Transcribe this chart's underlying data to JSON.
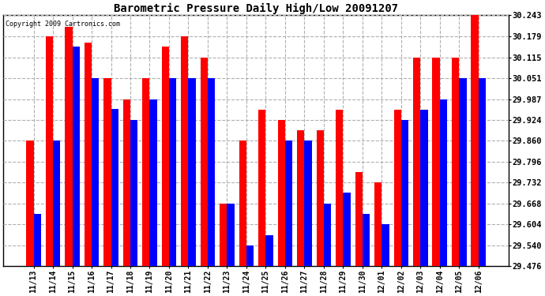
{
  "title": "Barometric Pressure Daily High/Low 20091207",
  "copyright": "Copyright 2009 Cartronics.com",
  "dates": [
    "11/13",
    "11/14",
    "11/15",
    "11/16",
    "11/17",
    "11/18",
    "11/19",
    "11/20",
    "11/21",
    "11/22",
    "11/23",
    "11/24",
    "11/25",
    "11/26",
    "11/27",
    "11/28",
    "11/29",
    "11/30",
    "12/01",
    "12/02",
    "12/03",
    "12/04",
    "12/05",
    "12/06"
  ],
  "highs": [
    29.86,
    30.179,
    30.207,
    30.16,
    30.051,
    29.987,
    30.051,
    30.147,
    30.179,
    30.115,
    29.668,
    29.86,
    29.955,
    29.924,
    29.892,
    29.892,
    29.955,
    29.764,
    29.732,
    29.955,
    30.115,
    30.115,
    30.115,
    30.243
  ],
  "lows": [
    29.636,
    29.86,
    30.147,
    30.051,
    29.956,
    29.924,
    29.987,
    30.051,
    30.051,
    30.051,
    29.668,
    29.54,
    29.572,
    29.86,
    29.86,
    29.668,
    29.7,
    29.636,
    29.604,
    29.924,
    29.955,
    29.987,
    30.051,
    30.051
  ],
  "high_color": "#ff0000",
  "low_color": "#0000ff",
  "bg_color": "#ffffff",
  "grid_color": "#b0b0b0",
  "ymin": 29.476,
  "ymax": 30.243,
  "yticks": [
    29.476,
    29.54,
    29.604,
    29.668,
    29.732,
    29.796,
    29.86,
    29.924,
    29.987,
    30.051,
    30.115,
    30.179,
    30.243
  ],
  "bar_width": 0.38,
  "figwidth": 6.9,
  "figheight": 3.75,
  "dpi": 100
}
